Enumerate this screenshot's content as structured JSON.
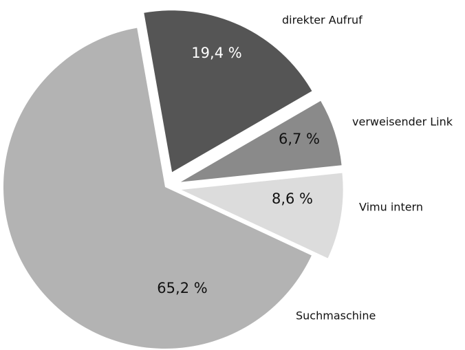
{
  "chart_data": {
    "type": "pie",
    "categories": [
      "direkter Aufruf",
      "verweisender Link",
      "Vimu intern",
      "Suchmaschine"
    ],
    "values": [
      19.4,
      6.7,
      8.6,
      65.2
    ],
    "value_labels": [
      "19,4  %",
      "6,7  %",
      "8,6  %",
      "65,2  %"
    ],
    "colors": [
      "#555555",
      "#8a8a8a",
      "#dcdcdc",
      "#b3b3b3"
    ],
    "explode": [
      true,
      true,
      true,
      false
    ]
  }
}
